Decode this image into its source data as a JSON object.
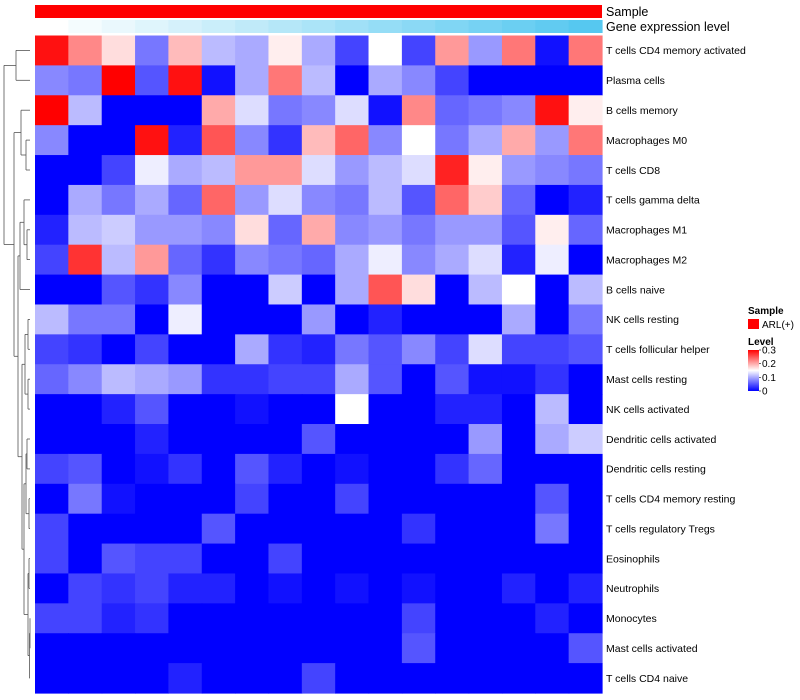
{
  "chart_data": {
    "type": "heatmap",
    "title": "",
    "annotations": [
      {
        "name": "Sample",
        "kind": "categorical",
        "value": "ARL(+)",
        "color": "#ff0000"
      },
      {
        "name": "Gene expression level",
        "kind": "gradient",
        "color_low": "#ffffff",
        "color_high": "#56c8f0"
      }
    ],
    "rows": [
      "T cells CD4 memory activated",
      "Plasma cells",
      "B cells memory",
      "Macrophages M0",
      "T cells CD8",
      "T cells gamma delta",
      "Macrophages M1",
      "Macrophages M2",
      "B cells naive",
      "NK cells resting",
      "T cells follicular helper",
      "Mast cells resting",
      "NK cells activated",
      "Dendritic cells activated",
      "Dendritic cells resting",
      "T cells CD4 memory resting",
      "T cells regulatory  Tregs",
      "Eosinophils",
      "Neutrophils",
      "Monocytes",
      "Mast cells activated",
      "T cells CD4 naive"
    ],
    "n_samples": 17,
    "color_scale": {
      "low": "#0000ff",
      "mid": "#ffffff",
      "high": "#ff0000",
      "min": 0,
      "mid_value": 0.15,
      "max": 0.3
    },
    "values": [
      [
        0.29,
        0.22,
        0.17,
        0.07,
        0.19,
        0.11,
        0.1,
        0.16,
        0.1,
        0.04,
        0.15,
        0.04,
        0.21,
        0.09,
        0.23,
        0.01,
        0.23
      ],
      [
        0.08,
        0.07,
        0.3,
        0.05,
        0.29,
        0.01,
        0.1,
        0.23,
        0.11,
        0.0,
        0.1,
        0.08,
        0.04,
        0.0,
        0.0,
        0.0,
        0.0
      ],
      [
        0.3,
        0.11,
        0.0,
        0.0,
        0.0,
        0.2,
        0.13,
        0.07,
        0.08,
        0.13,
        0.01,
        0.22,
        0.06,
        0.07,
        0.08,
        0.29,
        0.16
      ],
      [
        0.08,
        0.0,
        0.0,
        0.29,
        0.02,
        0.25,
        0.08,
        0.03,
        0.19,
        0.24,
        0.08,
        0.15,
        0.07,
        0.1,
        0.2,
        0.09,
        0.23
      ],
      [
        0.0,
        0.0,
        0.04,
        0.14,
        0.1,
        0.11,
        0.21,
        0.21,
        0.13,
        0.09,
        0.11,
        0.13,
        0.28,
        0.16,
        0.09,
        0.08,
        0.07
      ],
      [
        0.0,
        0.1,
        0.07,
        0.1,
        0.06,
        0.24,
        0.09,
        0.13,
        0.08,
        0.07,
        0.11,
        0.05,
        0.24,
        0.18,
        0.06,
        0.0,
        0.02
      ],
      [
        0.02,
        0.11,
        0.12,
        0.09,
        0.09,
        0.08,
        0.17,
        0.06,
        0.2,
        0.08,
        0.09,
        0.07,
        0.09,
        0.09,
        0.05,
        0.16,
        0.06
      ],
      [
        0.04,
        0.27,
        0.11,
        0.21,
        0.06,
        0.03,
        0.08,
        0.07,
        0.06,
        0.1,
        0.14,
        0.08,
        0.1,
        0.13,
        0.02,
        0.14,
        0.0
      ],
      [
        0.0,
        0.0,
        0.05,
        0.03,
        0.08,
        0.0,
        0.0,
        0.12,
        0.0,
        0.1,
        0.25,
        0.17,
        0.0,
        0.11,
        0.15,
        0.0,
        0.11
      ],
      [
        0.11,
        0.07,
        0.07,
        0.0,
        0.14,
        0.0,
        0.0,
        0.0,
        0.09,
        0.0,
        0.02,
        0.0,
        0.0,
        0.0,
        0.1,
        0.0,
        0.07
      ],
      [
        0.04,
        0.03,
        0.0,
        0.04,
        0.0,
        0.0,
        0.1,
        0.03,
        0.02,
        0.07,
        0.05,
        0.08,
        0.04,
        0.13,
        0.04,
        0.04,
        0.05
      ],
      [
        0.06,
        0.08,
        0.11,
        0.1,
        0.09,
        0.03,
        0.03,
        0.04,
        0.04,
        0.1,
        0.05,
        0.0,
        0.05,
        0.01,
        0.01,
        0.03,
        0.0
      ],
      [
        0.0,
        0.0,
        0.02,
        0.05,
        0.0,
        0.0,
        0.01,
        0.0,
        0.0,
        0.15,
        0.0,
        0.0,
        0.02,
        0.02,
        0.0,
        0.11,
        0.0
      ],
      [
        0.0,
        0.0,
        0.0,
        0.02,
        0.0,
        0.0,
        0.0,
        0.0,
        0.05,
        0.0,
        0.0,
        0.0,
        0.0,
        0.09,
        0.0,
        0.1,
        0.12
      ],
      [
        0.04,
        0.05,
        0.0,
        0.01,
        0.03,
        0.0,
        0.05,
        0.02,
        0.0,
        0.01,
        0.0,
        0.0,
        0.03,
        0.06,
        0.0,
        0.0,
        0.0
      ],
      [
        0.0,
        0.07,
        0.01,
        0.0,
        0.0,
        0.0,
        0.04,
        0.0,
        0.0,
        0.04,
        0.0,
        0.0,
        0.0,
        0.0,
        0.0,
        0.05,
        0.0
      ],
      [
        0.04,
        0.0,
        0.0,
        0.0,
        0.0,
        0.05,
        0.0,
        0.0,
        0.0,
        0.0,
        0.0,
        0.03,
        0.0,
        0.0,
        0.0,
        0.07,
        0.0
      ],
      [
        0.04,
        0.0,
        0.05,
        0.04,
        0.04,
        0.0,
        0.0,
        0.04,
        0.0,
        0.0,
        0.0,
        0.0,
        0.0,
        0.0,
        0.0,
        0.0,
        0.0
      ],
      [
        0.0,
        0.04,
        0.03,
        0.04,
        0.02,
        0.02,
        0.0,
        0.01,
        0.0,
        0.01,
        0.0,
        0.01,
        0.0,
        0.0,
        0.02,
        0.0,
        0.02
      ],
      [
        0.04,
        0.04,
        0.02,
        0.03,
        0.0,
        0.0,
        0.0,
        0.0,
        0.0,
        0.0,
        0.0,
        0.04,
        0.0,
        0.0,
        0.0,
        0.02,
        0.0
      ],
      [
        0.0,
        0.0,
        0.0,
        0.0,
        0.0,
        0.0,
        0.0,
        0.0,
        0.0,
        0.0,
        0.0,
        0.05,
        0.0,
        0.0,
        0.0,
        0.0,
        0.05
      ],
      [
        0.0,
        0.0,
        0.0,
        0.0,
        0.02,
        0.0,
        0.0,
        0.0,
        0.04,
        0.0,
        0.0,
        0.0,
        0.0,
        0.0,
        0.0,
        0.0,
        0.0
      ]
    ],
    "legend": {
      "sample_title": "Sample",
      "sample_entries": [
        {
          "label": "ARL(+)",
          "color": "#ff0000"
        }
      ],
      "level_title": "Level",
      "level_ticks": [
        0.3,
        0.2,
        0.1,
        0
      ]
    },
    "dendrogram": "hierarchical clustering of rows (left side)"
  }
}
